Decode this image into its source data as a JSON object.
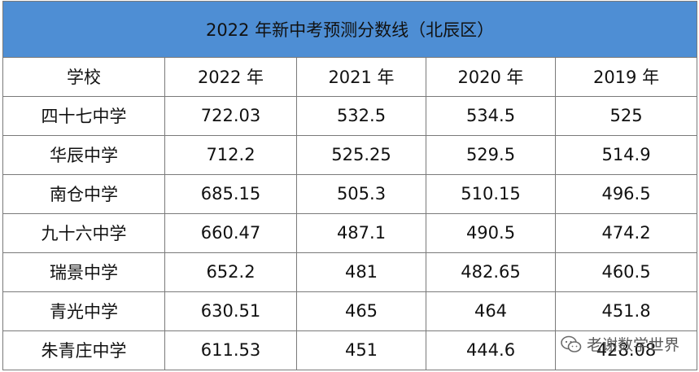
{
  "title": "2022 年新中考预测分数线（北辰区）",
  "header": [
    "学校",
    "2022 年",
    "2021 年",
    "2020 年",
    "2019 年"
  ],
  "rows": [
    [
      "四十七中学",
      "722.03",
      "532.5",
      "534.5",
      "525"
    ],
    [
      "华辰中学",
      "712.2",
      "525.25",
      "529.5",
      "514.9"
    ],
    [
      "南仓中学",
      "685.15",
      "505.3",
      "510.15",
      "496.5"
    ],
    [
      "九十六中学",
      "660.47",
      "487.1",
      "490.5",
      "474.2"
    ],
    [
      "瑞景中学",
      "652.2",
      "481",
      "482.65",
      "460.5"
    ],
    [
      "青光中学",
      "630.51",
      "465",
      "464",
      "451.8"
    ],
    [
      "朱青庄中学",
      "611.53",
      "451",
      "444.6",
      "428.08"
    ]
  ],
  "watermark": {
    "text": "老谢数学世界",
    "icon": "wechat-icon"
  }
}
